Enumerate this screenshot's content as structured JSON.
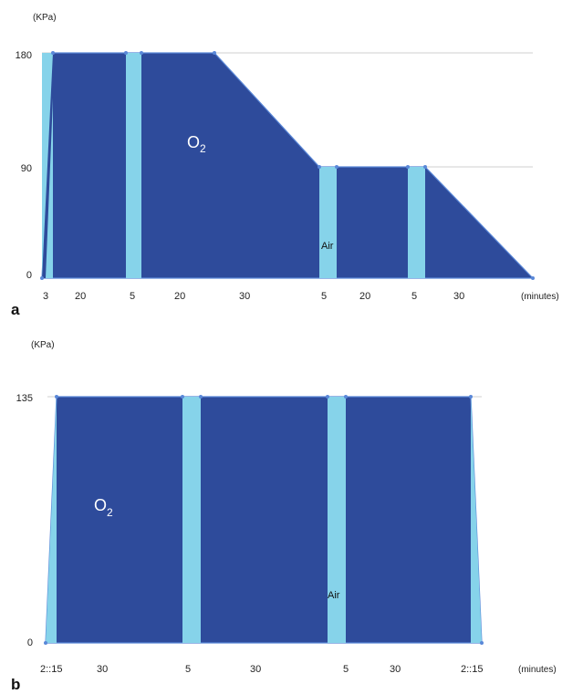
{
  "chart_data": [
    {
      "panel_label": "a",
      "type": "area",
      "y_unit_label": "(KPa)",
      "x_unit_label": "(minutes)",
      "y_ticks": [
        "180",
        "90",
        "0"
      ],
      "segment_labels": [
        "3",
        "20",
        "5",
        "20",
        "30",
        "5",
        "20",
        "5",
        "30"
      ],
      "profile": {
        "t": [
          0,
          3,
          23,
          28,
          48,
          78,
          83,
          103,
          108,
          138
        ],
        "pressure_kpa": [
          0,
          180,
          180,
          180,
          180,
          90,
          90,
          90,
          90,
          0
        ]
      },
      "air_breaks": [
        [
          23,
          28
        ],
        [
          78,
          83
        ],
        [
          103,
          108
        ]
      ],
      "gas_label": "O",
      "gas_subscript": "2",
      "air_label": "Air",
      "colors": {
        "oxygen": "#2e4b9b",
        "air": "#86d3ea"
      }
    },
    {
      "panel_label": "b",
      "type": "area",
      "y_unit_label": "(KPa)",
      "x_unit_label": "(minutes)",
      "y_ticks": [
        "135",
        "0"
      ],
      "segment_labels": [
        "2::15",
        "30",
        "5",
        "30",
        "5",
        "30",
        "2::15"
      ],
      "profile": {
        "t": [
          0,
          2.25,
          32.25,
          37.25,
          67.25,
          72.25,
          102.25,
          104.5
        ],
        "pressure_kpa": [
          0,
          135,
          135,
          135,
          135,
          135,
          135,
          0
        ]
      },
      "air_breaks": [
        [
          32.25,
          37.25
        ],
        [
          67.25,
          72.25
        ]
      ],
      "gas_label": "O",
      "gas_subscript": "2",
      "air_label": "Air",
      "colors": {
        "oxygen": "#2e4b9b",
        "air": "#86d3ea",
        "compression": "#86d3ea"
      }
    }
  ]
}
